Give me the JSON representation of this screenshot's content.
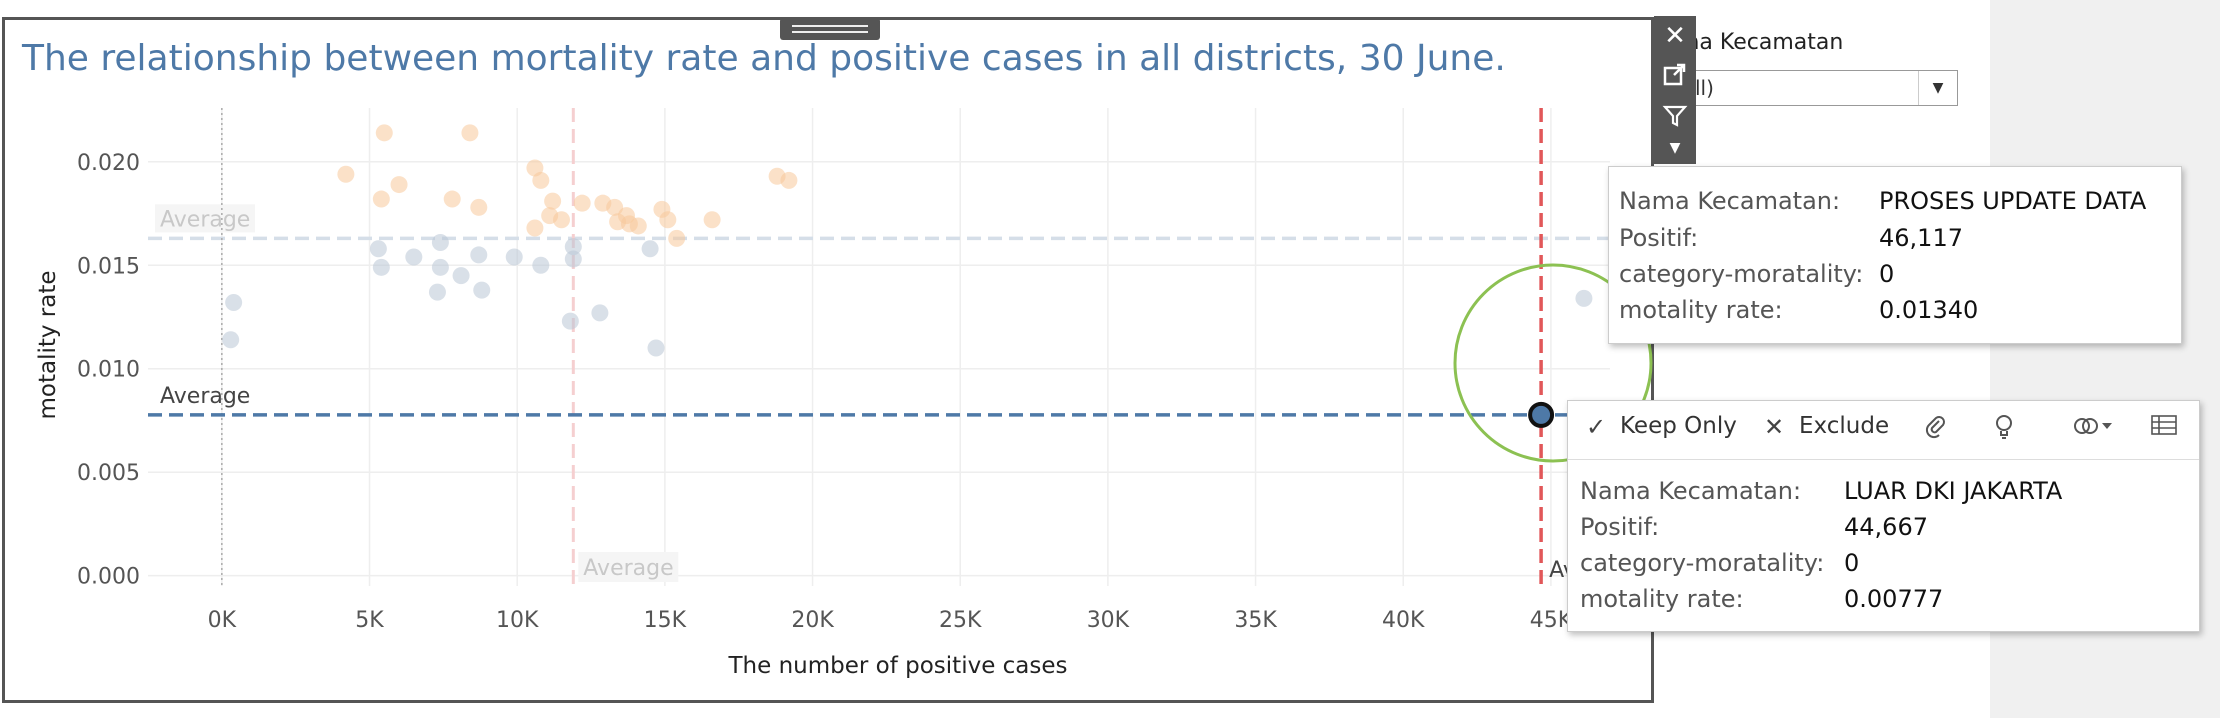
{
  "title": "The relationship between mortality rate and positive cases in all districts, 30 June.",
  "filter": {
    "label": "Nama Kecamatan",
    "label_visible": "ma Kecamatan",
    "value_visible": "ll)"
  },
  "toolbar_icons": [
    "close-icon",
    "popout-icon",
    "filter-icon",
    "dropdown-arrow-icon"
  ],
  "colors": {
    "title": "#4e79a7",
    "series_blue": "#b9c6d6",
    "series_orange": "#f8c99b",
    "avg_blue": "#4e79a7",
    "avg_red": "#e15759",
    "highlight_ring": "#8cc152"
  },
  "chart_data": {
    "type": "scatter",
    "xlabel": "The number of positive cases",
    "ylabel": "motality rate",
    "xlim": [
      -2500,
      47000
    ],
    "ylim": [
      -0.0005,
      0.0226
    ],
    "x_ticks": [
      0,
      5000,
      10000,
      15000,
      20000,
      25000,
      30000,
      35000,
      40000,
      45000
    ],
    "x_tick_labels": [
      "0K",
      "5K",
      "10K",
      "15K",
      "20K",
      "25K",
      "30K",
      "35K",
      "40K",
      "45K"
    ],
    "y_ticks": [
      0.0,
      0.005,
      0.01,
      0.015,
      0.02
    ],
    "y_tick_labels": [
      "0.000",
      "0.005",
      "0.010",
      "0.015",
      "0.020"
    ],
    "grid": true,
    "series": [
      {
        "color": "#b9c6d6",
        "points": [
          [
            400,
            0.0132
          ],
          [
            300,
            0.0114
          ],
          [
            5300,
            0.0158
          ],
          [
            5400,
            0.0149
          ],
          [
            6500,
            0.0154
          ],
          [
            7400,
            0.0161
          ],
          [
            7400,
            0.0149
          ],
          [
            7300,
            0.0137
          ],
          [
            8100,
            0.0145
          ],
          [
            8700,
            0.0155
          ],
          [
            8800,
            0.0138
          ],
          [
            9900,
            0.0154
          ],
          [
            10800,
            0.015
          ],
          [
            11800,
            0.0123
          ],
          [
            11900,
            0.0159
          ],
          [
            11900,
            0.0153
          ],
          [
            12800,
            0.0127
          ],
          [
            14500,
            0.0158
          ],
          [
            14700,
            0.011
          ],
          [
            46117,
            0.0134
          ]
        ]
      },
      {
        "color": "#f8c99b",
        "points": [
          [
            4200,
            0.0194
          ],
          [
            5500,
            0.0214
          ],
          [
            5400,
            0.0182
          ],
          [
            6000,
            0.0189
          ],
          [
            7800,
            0.0182
          ],
          [
            8400,
            0.0214
          ],
          [
            8700,
            0.0178
          ],
          [
            10600,
            0.0197
          ],
          [
            10800,
            0.0191
          ],
          [
            10600,
            0.0168
          ],
          [
            11100,
            0.0174
          ],
          [
            11200,
            0.0181
          ],
          [
            11500,
            0.0172
          ],
          [
            12200,
            0.018
          ],
          [
            12900,
            0.018
          ],
          [
            13300,
            0.0178
          ],
          [
            13400,
            0.0171
          ],
          [
            13700,
            0.0174
          ],
          [
            13800,
            0.017
          ],
          [
            14100,
            0.0169
          ],
          [
            14900,
            0.0177
          ],
          [
            15100,
            0.0172
          ],
          [
            15400,
            0.0163
          ],
          [
            16600,
            0.0172
          ],
          [
            18800,
            0.0193
          ],
          [
            19200,
            0.0191
          ]
        ]
      }
    ],
    "selected_point": [
      44667,
      0.00777
    ],
    "reference_lines": [
      {
        "axis": "y",
        "value": 0.0163,
        "label": "Average",
        "faded": true
      },
      {
        "axis": "y",
        "value": 0.00777,
        "label": "Average",
        "faded": false
      },
      {
        "axis": "x",
        "value": 11900,
        "label": "Average",
        "faded": true
      },
      {
        "axis": "x",
        "value": 44667,
        "label": "Ave",
        "faded": false
      },
      {
        "axis": "x",
        "value": 0,
        "label": "",
        "faded": false,
        "dotted": true
      }
    ]
  },
  "tooltip_1": {
    "rows": [
      {
        "key": "Nama Kecamatan:",
        "value": "PROSES UPDATE DATA"
      },
      {
        "key": "Positif:",
        "value": "46,117"
      },
      {
        "key": "category-moratality:",
        "value": "0"
      },
      {
        "key": "motality rate:",
        "value": "0.01340"
      }
    ]
  },
  "tooltip_2": {
    "actions": {
      "keep_only": "Keep Only",
      "exclude": "Exclude"
    },
    "rows": [
      {
        "key": "Nama Kecamatan:",
        "value": "LUAR DKI JAKARTA"
      },
      {
        "key": "Positif:",
        "value": "44,667"
      },
      {
        "key": "category-moratality:",
        "value": "0"
      },
      {
        "key": "motality rate:",
        "value": "0.00777"
      }
    ]
  }
}
